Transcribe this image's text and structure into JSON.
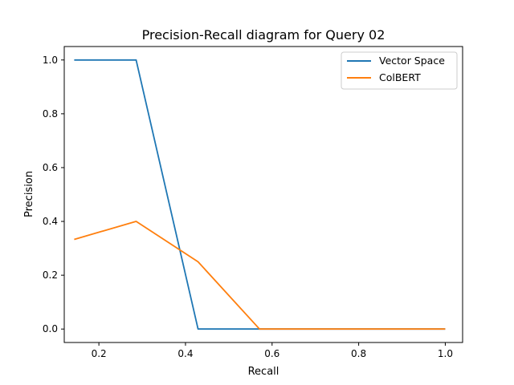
{
  "chart_data": {
    "type": "line",
    "title": "Precision-Recall diagram for Query 02",
    "xlabel": "Recall",
    "ylabel": "Precision",
    "xlim": [
      0.12,
      1.04
    ],
    "ylim": [
      -0.05,
      1.05
    ],
    "xticks": [
      0.2,
      0.4,
      0.6,
      0.8,
      1.0
    ],
    "xtick_labels": [
      "0.2",
      "0.4",
      "0.6",
      "0.8",
      "1.0"
    ],
    "yticks": [
      0.0,
      0.2,
      0.4,
      0.6,
      0.8,
      1.0
    ],
    "ytick_labels": [
      "0.0",
      "0.2",
      "0.4",
      "0.6",
      "0.8",
      "1.0"
    ],
    "grid": false,
    "legend_position": "top-right",
    "series": [
      {
        "name": "Vector Space",
        "color": "#1f77b4",
        "x": [
          0.143,
          0.286,
          0.429,
          0.571,
          0.714,
          0.857,
          1.0
        ],
        "y": [
          1.0,
          1.0,
          0.0,
          0.0,
          0.0,
          0.0,
          0.0
        ]
      },
      {
        "name": "ColBERT",
        "color": "#ff7f0e",
        "x": [
          0.143,
          0.286,
          0.429,
          0.571,
          0.714,
          0.857,
          1.0
        ],
        "y": [
          0.333,
          0.4,
          0.25,
          0.0,
          0.0,
          0.0,
          0.0
        ]
      }
    ]
  }
}
